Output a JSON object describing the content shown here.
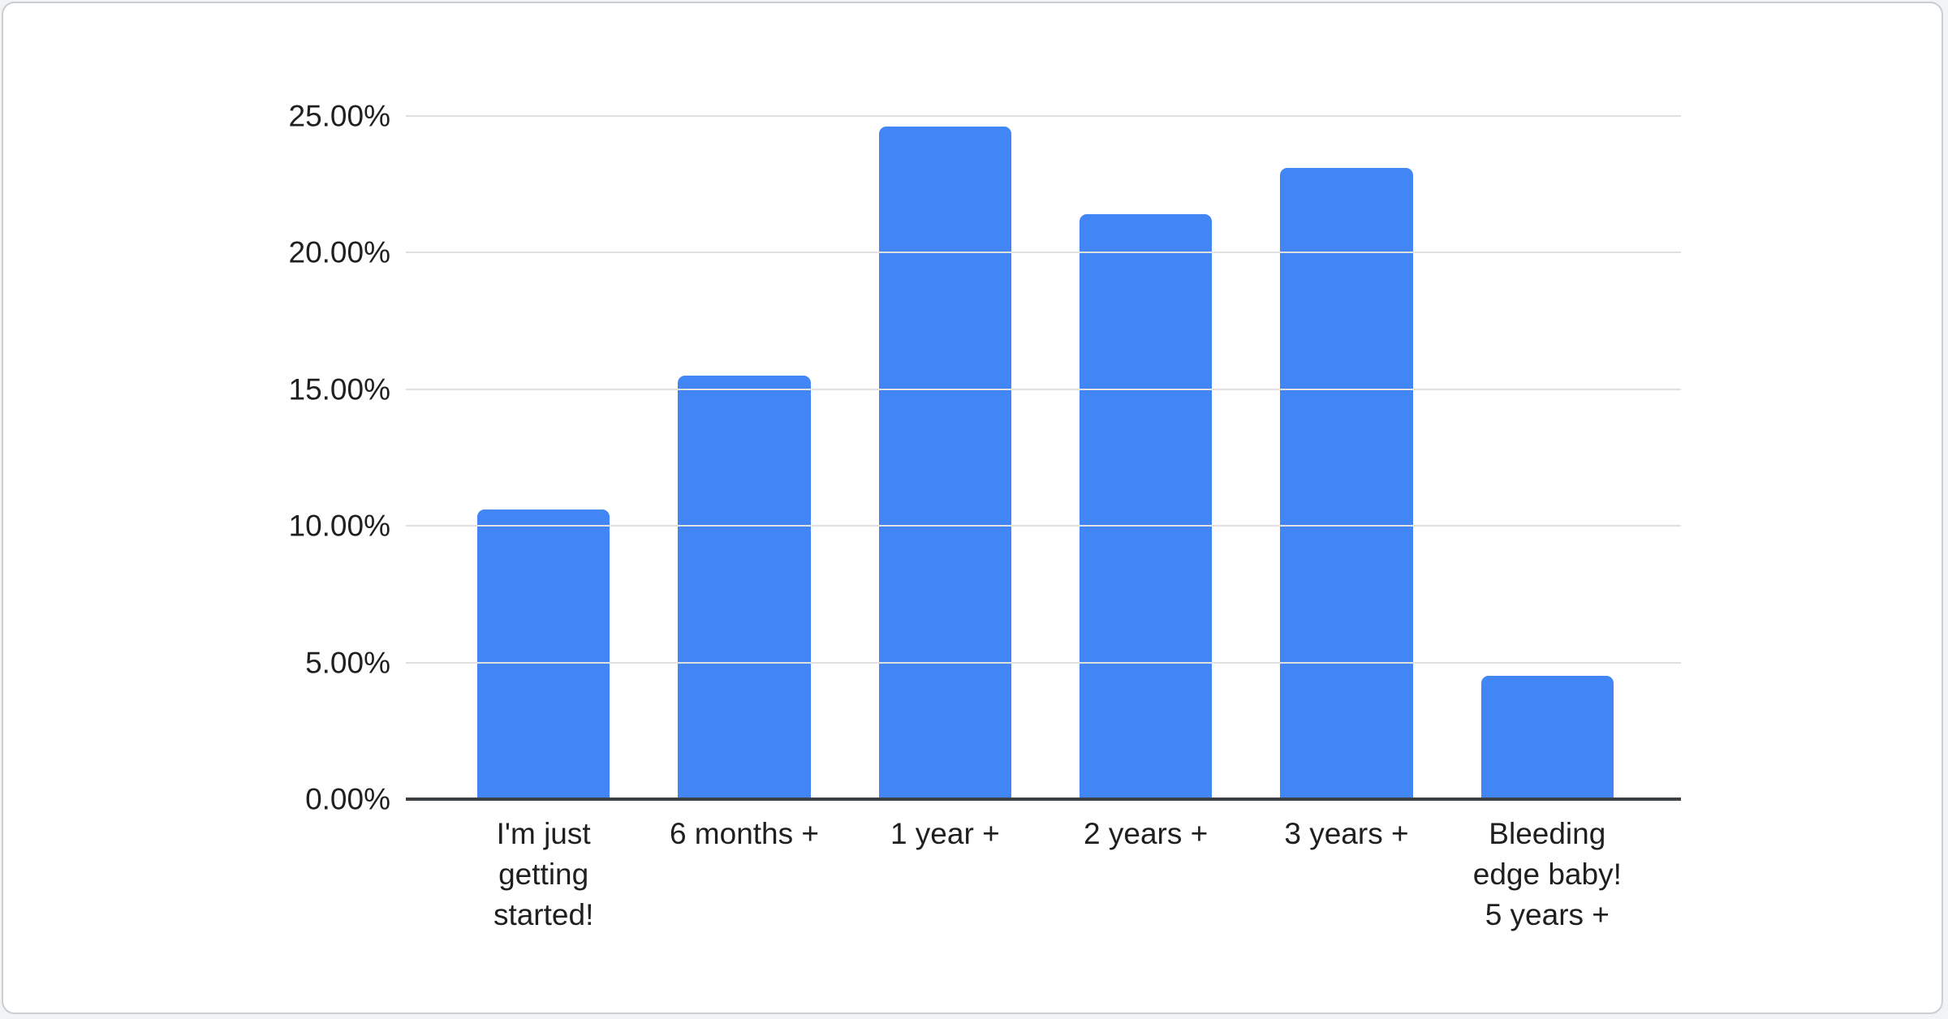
{
  "chart_data": {
    "type": "bar",
    "categories": [
      "I'm just\ngetting\nstarted!",
      "6 months +",
      "1 year +",
      "2 years +",
      "3 years +",
      "Bleeding\nedge baby!\n5 years +"
    ],
    "values": [
      10.6,
      15.5,
      24.6,
      21.4,
      23.1,
      4.5
    ],
    "yticks": [
      {
        "label": "0.00%",
        "value": 0
      },
      {
        "label": "5.00%",
        "value": 5
      },
      {
        "label": "10.00%",
        "value": 10
      },
      {
        "label": "15.00%",
        "value": 15
      },
      {
        "label": "20.00%",
        "value": 20
      },
      {
        "label": "25.00%",
        "value": 25
      }
    ],
    "ylim": [
      0,
      25
    ],
    "grid": true,
    "legend": "none",
    "bar_color": "#4285f4",
    "gridline_color": "#e0e0e0",
    "axis_color": "#3c4043",
    "label_color": "#1f1f1f",
    "card_background": "#ffffff",
    "card_border_color": "#c9ced3"
  }
}
